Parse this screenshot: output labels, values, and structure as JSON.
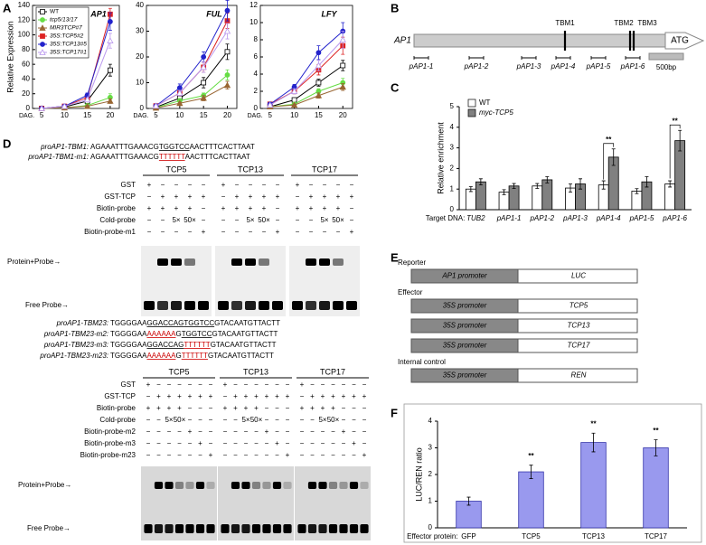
{
  "panel_labels": [
    "A",
    "B",
    "C",
    "D",
    "E",
    "F"
  ],
  "chart_data": [
    {
      "type": "line",
      "title": "AP1",
      "x_label": "DAG.",
      "y_label": "Relative Expression",
      "legend": "upper left",
      "x": [
        5,
        10,
        15,
        20
      ],
      "xlim": [
        3,
        22
      ],
      "xticks": [
        5,
        10,
        15,
        20
      ],
      "ylim": [
        0,
        140
      ],
      "yticks": [
        0,
        20,
        40,
        60,
        80,
        100,
        120,
        140
      ],
      "series": [
        {
          "name": "WT",
          "color": "#000000",
          "marker": "square-open",
          "values": [
            0,
            2,
            10,
            52
          ],
          "errors": [
            0,
            0.5,
            2,
            8
          ]
        },
        {
          "name": "tcp5/13/17",
          "color": "#66dd44",
          "marker": "circle",
          "values": [
            0,
            1,
            4,
            15
          ],
          "errors": [
            0,
            0.3,
            1,
            5
          ]
        },
        {
          "name": "MIR3TCP#7",
          "color": "#996633",
          "marker": "triangle",
          "values": [
            0,
            1,
            3,
            10
          ],
          "errors": [
            0,
            0.3,
            1,
            3
          ]
        },
        {
          "name": "35S:TCP5#2",
          "color": "#dd2222",
          "marker": "square",
          "values": [
            0,
            3,
            15,
            128
          ],
          "errors": [
            0,
            1,
            3,
            8
          ]
        },
        {
          "name": "35S:TCP13#5",
          "color": "#2222cc",
          "marker": "circle",
          "values": [
            0,
            3,
            18,
            118
          ],
          "errors": [
            0,
            1,
            3,
            12
          ]
        },
        {
          "name": "35S:TCP17#1",
          "color": "#bb99ee",
          "marker": "triangle-open",
          "values": [
            0,
            3,
            12,
            92
          ],
          "errors": [
            0,
            1,
            2,
            10
          ]
        }
      ]
    },
    {
      "type": "line",
      "title": "FUL",
      "x_label": "DAG.",
      "x": [
        5,
        10,
        15,
        20
      ],
      "xlim": [
        3,
        22
      ],
      "xticks": [
        5,
        10,
        15,
        20
      ],
      "ylim": [
        0,
        40
      ],
      "yticks": [
        0,
        10,
        20,
        30,
        40
      ],
      "series": [
        {
          "color": "#000000",
          "marker": "square-open",
          "values": [
            0.5,
            4,
            10,
            22
          ],
          "errors": [
            0.2,
            1,
            2,
            3
          ]
        },
        {
          "color": "#66dd44",
          "marker": "circle",
          "values": [
            0.3,
            3,
            5,
            13
          ],
          "errors": [
            0.1,
            0.8,
            1,
            2
          ]
        },
        {
          "color": "#996633",
          "marker": "triangle",
          "values": [
            0.2,
            2,
            4,
            9
          ],
          "errors": [
            0.1,
            0.5,
            1,
            1.5
          ]
        },
        {
          "color": "#dd2222",
          "marker": "square",
          "values": [
            1,
            6,
            16,
            34
          ],
          "errors": [
            0.3,
            1,
            2,
            3
          ]
        },
        {
          "color": "#2222cc",
          "marker": "circle",
          "values": [
            1,
            8,
            20,
            38
          ],
          "errors": [
            0.3,
            1.5,
            2,
            4
          ]
        },
        {
          "color": "#bb99ee",
          "marker": "triangle-open",
          "values": [
            1,
            6,
            16,
            30
          ],
          "errors": [
            0.3,
            1,
            2,
            3
          ]
        }
      ]
    },
    {
      "type": "line",
      "title": "LFY",
      "x_label": "DAG.",
      "x": [
        5,
        10,
        15,
        20
      ],
      "xlim": [
        3,
        22
      ],
      "xticks": [
        5,
        10,
        15,
        20
      ],
      "ylim": [
        0,
        12
      ],
      "yticks": [
        0,
        2,
        4,
        6,
        8,
        10,
        12
      ],
      "series": [
        {
          "color": "#000000",
          "marker": "square-open",
          "values": [
            0.2,
            1,
            3,
            5
          ],
          "errors": [
            0.1,
            0.2,
            0.4,
            0.6
          ]
        },
        {
          "color": "#66dd44",
          "marker": "circle",
          "values": [
            0.2,
            0.5,
            2,
            3
          ],
          "errors": [
            0.1,
            0.1,
            0.3,
            0.5
          ]
        },
        {
          "color": "#996633",
          "marker": "triangle",
          "values": [
            0.2,
            0.4,
            1.5,
            2.5
          ],
          "errors": [
            0.1,
            0.1,
            0.3,
            0.4
          ]
        },
        {
          "color": "#dd2222",
          "marker": "square",
          "values": [
            0.5,
            2,
            4.5,
            7.3
          ],
          "errors": [
            0.1,
            0.3,
            0.6,
            1
          ]
        },
        {
          "color": "#2222cc",
          "marker": "circle",
          "values": [
            0.5,
            2.5,
            6.5,
            9
          ],
          "errors": [
            0.1,
            0.3,
            0.8,
            1
          ]
        },
        {
          "color": "#bb99ee",
          "marker": "triangle-open",
          "values": [
            0.4,
            2,
            5,
            8
          ],
          "errors": [
            0.1,
            0.3,
            0.6,
            1
          ]
        }
      ]
    },
    {
      "type": "bar",
      "y_label": "Relative enrichment",
      "x_prefix": "Target DNA:",
      "legend": "upper left",
      "categories": [
        "TUB2",
        "pAP1-1",
        "pAP1-2",
        "pAP1-3",
        "pAP1-4",
        "pAP1-5",
        "pAP1-6"
      ],
      "ylim": [
        0,
        5
      ],
      "yticks": [
        0,
        1,
        2,
        3,
        4,
        5
      ],
      "series": [
        {
          "name": "WT",
          "color": "#ffffff",
          "values": [
            1,
            0.85,
            1.15,
            1.05,
            1.2,
            0.9,
            1.25
          ],
          "errors": [
            0.12,
            0.12,
            0.12,
            0.2,
            0.2,
            0.12,
            0.15
          ]
        },
        {
          "name": "myc-TCP5",
          "color": "#808080",
          "values": [
            1.35,
            1.15,
            1.45,
            1.25,
            2.55,
            1.35,
            3.35
          ],
          "errors": [
            0.15,
            0.12,
            0.15,
            0.25,
            0.4,
            0.25,
            0.5
          ]
        }
      ],
      "annotations": [
        {
          "text": "**",
          "category": "pAP1-4"
        },
        {
          "text": "**",
          "category": "pAP1-6"
        }
      ]
    },
    {
      "type": "bar",
      "y_label": "LUC/REN ratio",
      "x_prefix": "Effector protein:",
      "categories": [
        "GFP",
        "TCP5",
        "TCP13",
        "TCP17"
      ],
      "ylim": [
        0,
        4
      ],
      "yticks": [
        0,
        1,
        2,
        3,
        4
      ],
      "color": "#9999ee",
      "values": [
        1.0,
        2.1,
        3.2,
        3.0
      ],
      "errors": [
        0.15,
        0.25,
        0.35,
        0.3
      ],
      "annotations": [
        {
          "text": "**",
          "category": "TCP5"
        },
        {
          "text": "**",
          "category": "TCP13"
        },
        {
          "text": "**",
          "category": "TCP17"
        }
      ]
    }
  ],
  "gene_diagram": {
    "gene": "AP1",
    "sites": [
      "TBM1",
      "TBM2",
      "TBM3"
    ],
    "start_codon": "ATG",
    "primers": [
      "pAP1-1",
      "pAP1-2",
      "pAP1-3",
      "pAP1-4",
      "pAP1-5",
      "pAP1-6"
    ],
    "scale_bar": "500bp"
  },
  "emsa": [
    {
      "sequences": [
        {
          "label": "proAP1-TBM1:",
          "parts": [
            {
              "text": "AGAAATTTGAAACG"
            },
            {
              "text": "TGGTCC",
              "underline": true
            },
            {
              "text": "AACTTTCACTTAAT"
            }
          ]
        },
        {
          "label": "proAP1-TBM1-m1:",
          "parts": [
            {
              "text": "AGAAATTTGAAACG"
            },
            {
              "text": "TTTTTT",
              "underline": true,
              "color": "#cc0000"
            },
            {
              "text": "AACTTTCACTTAAT"
            }
          ]
        }
      ],
      "groups": [
        "TCP5",
        "TCP13",
        "TCP17"
      ],
      "rows": [
        {
          "label": "GST",
          "lanes": [
            "+",
            "−",
            "−",
            "−",
            "−"
          ]
        },
        {
          "label": "GST-TCP",
          "lanes": [
            "−",
            "+",
            "+",
            "+",
            "+"
          ]
        },
        {
          "label": "Biotin-probe",
          "lanes": [
            "+",
            "+",
            "+",
            "+",
            "−"
          ]
        },
        {
          "label": "Cold-probe",
          "lanes": [
            "−",
            "−",
            "5×",
            "50×",
            "−"
          ]
        },
        {
          "label": "Biotin-probe-m1",
          "lanes": [
            "−",
            "−",
            "−",
            "−",
            "+"
          ]
        }
      ],
      "bands": [
        "Protein+Probe→",
        "Free Probe→"
      ]
    },
    {
      "sequences": [
        {
          "label": "proAP1-TBM23:",
          "parts": [
            {
              "text": "TGGGGAA"
            },
            {
              "text": "GGACCAG",
              "underline": true
            },
            {
              "text": "TGGTCC",
              "underline": true
            },
            {
              "text": "GTACAATGTTACTT"
            }
          ]
        },
        {
          "label": "proAP1-TBM23-m2:",
          "parts": [
            {
              "text": "TGGGGAA"
            },
            {
              "text": "AAAAAA",
              "underline": true,
              "color": "#cc0000"
            },
            {
              "text": "G"
            },
            {
              "text": "TGGTCC",
              "underline": true
            },
            {
              "text": "GTACAATGTTACTT"
            }
          ]
        },
        {
          "label": "proAP1-TBM23-m3:",
          "parts": [
            {
              "text": "TGGGGAA"
            },
            {
              "text": "GGACCAG",
              "underline": true
            },
            {
              "text": "TTTTTT",
              "underline": true,
              "color": "#cc0000"
            },
            {
              "text": "GTACAATGTTACTT"
            }
          ]
        },
        {
          "label": "proAP1-TBM23-m23:",
          "parts": [
            {
              "text": "TGGGGAA"
            },
            {
              "text": "AAAAAA",
              "underline": true,
              "color": "#cc0000"
            },
            {
              "text": "G"
            },
            {
              "text": "TTTTTT",
              "underline": true,
              "color": "#cc0000"
            },
            {
              "text": "GTACAATGTTACTT"
            }
          ]
        }
      ],
      "groups": [
        "TCP5",
        "TCP13",
        "TCP17"
      ],
      "rows": [
        {
          "label": "GST",
          "lanes": [
            "+",
            "−",
            "−",
            "−",
            "−",
            "−",
            "−"
          ]
        },
        {
          "label": "GST-TCP",
          "lanes": [
            "−",
            "+",
            "+",
            "+",
            "+",
            "+",
            "+"
          ]
        },
        {
          "label": "Biotin-probe",
          "lanes": [
            "+",
            "+",
            "+",
            "+",
            "−",
            "−",
            "−"
          ]
        },
        {
          "label": "Cold-probe",
          "lanes": [
            "−",
            "−",
            "5×",
            "50×",
            "−",
            "−",
            "−"
          ]
        },
        {
          "label": "Biotin-probe-m2",
          "lanes": [
            "−",
            "−",
            "−",
            "−",
            "+",
            "−",
            "−"
          ]
        },
        {
          "label": "Biotin-probe-m3",
          "lanes": [
            "−",
            "−",
            "−",
            "−",
            "−",
            "+",
            "−"
          ]
        },
        {
          "label": "Biotin-probe-m23",
          "lanes": [
            "−",
            "−",
            "−",
            "−",
            "−",
            "−",
            "+"
          ]
        }
      ],
      "bands": [
        "Protein+Probe→",
        "Free Probe→"
      ]
    }
  ],
  "constructs": {
    "sections": [
      {
        "heading": "Reporter",
        "rows": [
          {
            "promoter": "AP1 promoter",
            "gene": "LUC"
          }
        ]
      },
      {
        "heading": "Effector",
        "rows": [
          {
            "promoter": "35S promoter",
            "gene": "TCP5"
          },
          {
            "promoter": "35S promoter",
            "gene": "TCP13"
          },
          {
            "promoter": "35S promoter",
            "gene": "TCP17"
          }
        ]
      },
      {
        "heading": "Internal control",
        "rows": [
          {
            "promoter": "35S promoter",
            "gene": "REN"
          }
        ]
      }
    ]
  }
}
